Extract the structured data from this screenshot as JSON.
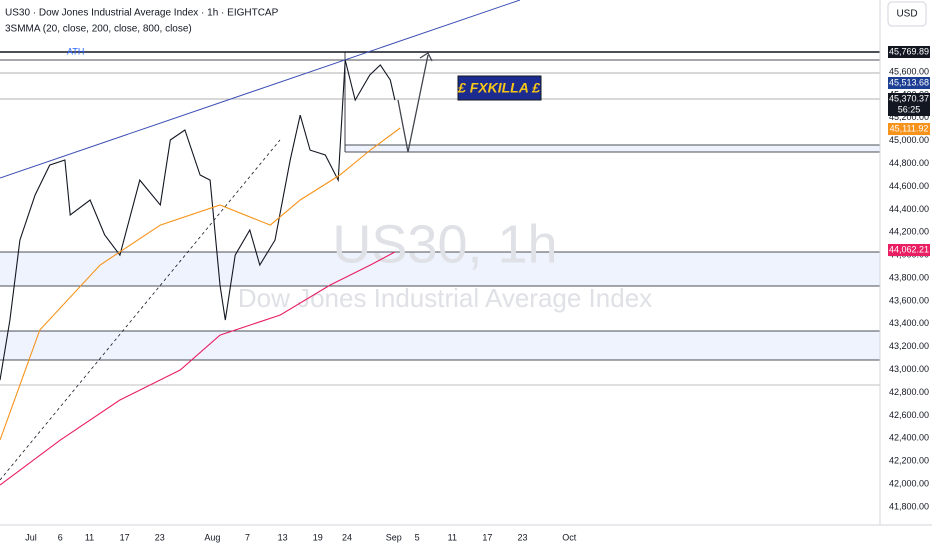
{
  "chart_data": {
    "type": "line",
    "title": "US30 · Dow Jones Industrial Average Index · 1h · EIGHTCAP",
    "subtitle": "3SMMA (20, close, 200, close, 800, close)",
    "currency": "USD",
    "watermark": "US30, 1h",
    "watermark_subtitle": "Dow Jones Industrial Average Index",
    "annotations": [
      "ATH",
      "£ FXKILLA £"
    ],
    "price_tags": [
      "45,769.89",
      "45,513.68",
      "45,370.37",
      "56:25",
      "45,111.92",
      "44,062.21"
    ],
    "grid": false,
    "xlim": [
      -5.3,
      145.1
    ],
    "ylim": [
      41643,
      46229
    ],
    "xticks": [
      {
        "value": 0,
        "label": "Jul"
      },
      {
        "value": 5,
        "label": "6"
      },
      {
        "value": 10,
        "label": "11"
      },
      {
        "value": 16,
        "label": "17"
      },
      {
        "value": 22,
        "label": "23"
      },
      {
        "value": 31,
        "label": "Aug"
      },
      {
        "value": 37,
        "label": "7"
      },
      {
        "value": 43,
        "label": "13"
      },
      {
        "value": 49,
        "label": "19"
      },
      {
        "value": 54,
        "label": "24"
      },
      {
        "value": 62,
        "label": "Sep"
      },
      {
        "value": 66,
        "label": "5"
      },
      {
        "value": 72,
        "label": "11"
      },
      {
        "value": 78,
        "label": "17"
      },
      {
        "value": 84,
        "label": "23"
      },
      {
        "value": 92,
        "label": "Oct"
      }
    ],
    "yticks": [
      {
        "value": 41800,
        "label": "41,800.00"
      },
      {
        "value": 42000,
        "label": "42,000.00"
      },
      {
        "value": 42200,
        "label": "42,200.00"
      },
      {
        "value": 42400,
        "label": "42,400.00"
      },
      {
        "value": 42600,
        "label": "42,600.00"
      },
      {
        "value": 42800,
        "label": "42,800.00"
      },
      {
        "value": 43000,
        "label": "43,000.00"
      },
      {
        "value": 43200,
        "label": "43,200.00"
      },
      {
        "value": 43400,
        "label": "43,400.00"
      },
      {
        "value": 43600,
        "label": "43,600.00"
      },
      {
        "value": 43800,
        "label": "43,800.00"
      },
      {
        "value": 44000,
        "label": "44,000.00"
      },
      {
        "value": 44200,
        "label": "44,200.00"
      },
      {
        "value": 44400,
        "label": "44,400.00"
      },
      {
        "value": 44600,
        "label": "44,600.00"
      },
      {
        "value": 44800,
        "label": "44,800.00"
      },
      {
        "value": 45000,
        "label": "45,000.00"
      },
      {
        "value": 45200,
        "label": "45,200.00"
      },
      {
        "value": 45400,
        "label": "45,400.00"
      },
      {
        "value": 45600,
        "label": "45,600.00"
      }
    ],
    "series": [
      {
        "color": "#131722",
        "x": [
          -5.3,
          -3.6,
          -1.9,
          0.7,
          3.2,
          5.8,
          6.7,
          10.1,
          12.6,
          15.2,
          18.6,
          22.1,
          23.8,
          26.3,
          28.9,
          30.6,
          32.3,
          33.2,
          34.9,
          37.4,
          39.1,
          41.7,
          44.3,
          46.0,
          47.7,
          50.3,
          52.5,
          53.7,
          55.4,
          57.9,
          59.7,
          61.4,
          62.2
        ],
        "values": [
          42909,
          43433,
          44132,
          44526,
          44787,
          44831,
          44351,
          44482,
          44176,
          44001,
          44656,
          44438,
          45006,
          45093,
          44700,
          44656,
          43739,
          43433,
          44001,
          44220,
          43914,
          44132,
          44831,
          45224,
          44918,
          44875,
          44656,
          45705,
          45355,
          45574,
          45661,
          45530,
          45355
        ]
      },
      {
        "color": "#f7931a",
        "x": [
          -5.3,
          1.5,
          11.8,
          22.1,
          32.3,
          40.9,
          46.0,
          52.8,
          58.0,
          63.1
        ],
        "values": [
          42385,
          43346,
          43914,
          44263,
          44438,
          44263,
          44482,
          44700,
          44919,
          45111
        ]
      },
      {
        "color": "#e91e63",
        "x": [
          -5.3,
          5.0,
          15.2,
          25.5,
          32.3,
          42.6,
          51.1,
          58.0,
          62.2
        ],
        "values": [
          41992,
          42385,
          42735,
          42997,
          43302,
          43477,
          43739,
          43914,
          44028
        ]
      }
    ]
  }
}
